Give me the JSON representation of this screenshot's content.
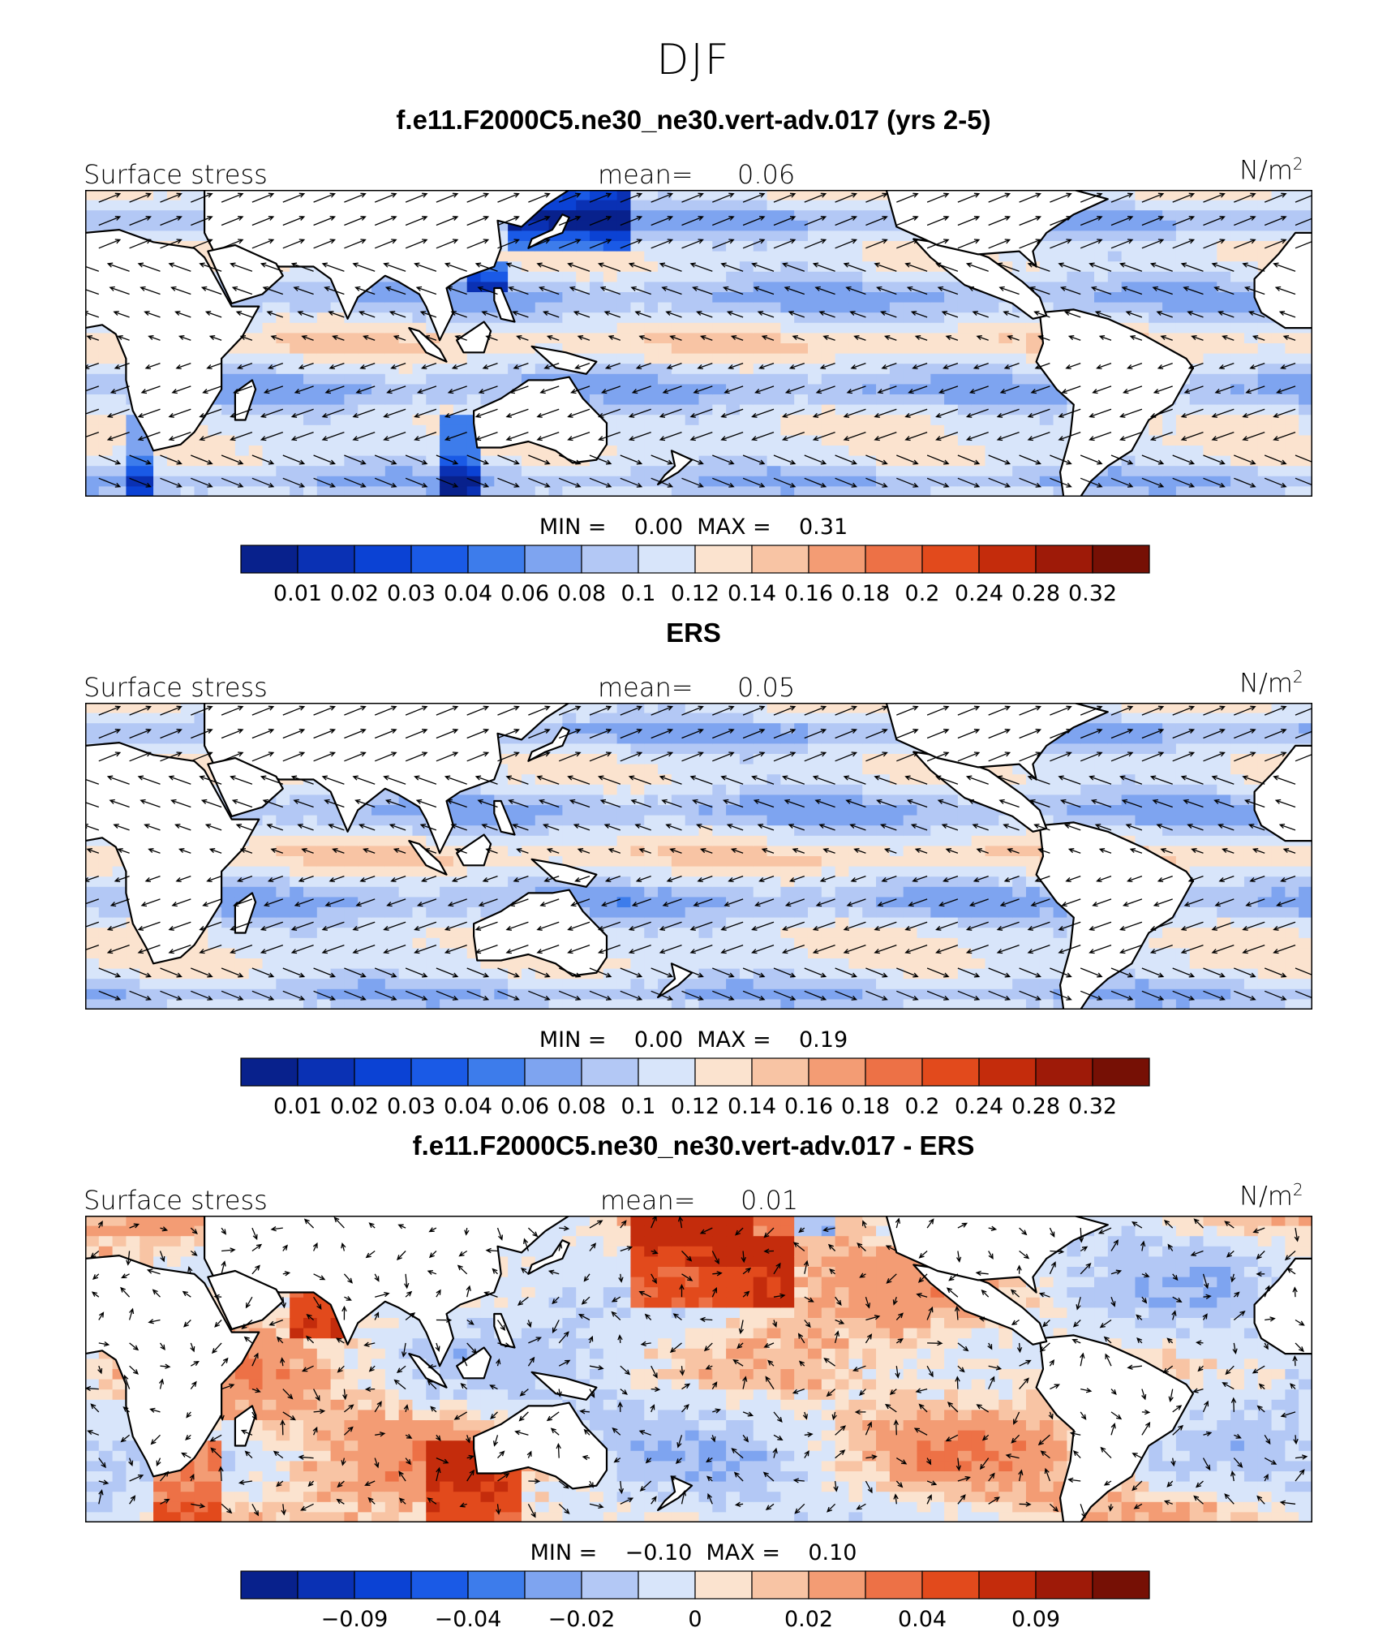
{
  "season": "DJF",
  "colors": {
    "levels": [
      "#08218c",
      "#0a31b4",
      "#0b42d4",
      "#1a5ae6",
      "#3d7ceb",
      "#7ea4f0",
      "#b3c8f5",
      "#d8e5fa",
      "#fbe3cf",
      "#f8c4a4",
      "#f39c74",
      "#ed7146",
      "#e24a1c",
      "#c42c0c",
      "#9e1a08",
      "#761005"
    ],
    "land": "#ffffff",
    "coast": "#000000"
  },
  "panels": [
    {
      "title": "f.e11.F2000C5.ne30_ne30.vert-adv.017 (yrs 2-5)",
      "left_label": "Surface stress",
      "mean_label": "mean=",
      "mean_value": "0.06",
      "units": "N/m",
      "units_sup": "2",
      "min_label": "MIN =",
      "min_value": "0.00",
      "max_label": "MAX =",
      "max_value": "0.31",
      "colorbar_ticks": [
        "0.01",
        "0.02",
        "0.03",
        "0.04",
        "0.06",
        "0.08",
        "0.1",
        "0.12",
        "0.14",
        "0.16",
        "0.18",
        "0.2",
        "0.24",
        "0.28",
        "0.32"
      ]
    },
    {
      "title": "ERS",
      "left_label": "Surface stress",
      "mean_label": "mean=",
      "mean_value": "0.05",
      "units": "N/m",
      "units_sup": "2",
      "min_label": "MIN =",
      "min_value": "0.00",
      "max_label": "MAX =",
      "max_value": "0.19",
      "colorbar_ticks": [
        "0.01",
        "0.02",
        "0.03",
        "0.04",
        "0.06",
        "0.08",
        "0.1",
        "0.12",
        "0.14",
        "0.16",
        "0.18",
        "0.2",
        "0.24",
        "0.28",
        "0.32"
      ]
    },
    {
      "title": "f.e11.F2000C5.ne30_ne30.vert-adv.017 - ERS",
      "left_label": "Surface stress",
      "mean_label": "mean=",
      "mean_value": "0.01",
      "units": "N/m",
      "units_sup": "2",
      "min_label": "MIN =",
      "min_value": "−0.10",
      "max_label": "MAX =",
      "max_value": "0.10",
      "colorbar_ticks": [
        "−0.09",
        "−0.04",
        "−0.02",
        "0",
        "0.02",
        "0.04",
        "0.09"
      ]
    }
  ],
  "chart_data": [
    {
      "type": "heatmap",
      "title": "f.e11.F2000C5.ne30_ne30.vert-adv.017 (yrs 2-5)",
      "variable": "Surface stress",
      "units": "N/m2",
      "mean": 0.06,
      "min": 0.0,
      "max": 0.31,
      "levels": [
        0.01,
        0.02,
        0.03,
        0.04,
        0.06,
        0.08,
        0.1,
        0.12,
        0.14,
        0.16,
        0.18,
        0.2,
        0.24,
        0.28,
        0.32
      ],
      "field": "model"
    },
    {
      "type": "heatmap",
      "title": "ERS",
      "variable": "Surface stress",
      "units": "N/m2",
      "mean": 0.05,
      "min": 0.0,
      "max": 0.19,
      "levels": [
        0.01,
        0.02,
        0.03,
        0.04,
        0.06,
        0.08,
        0.1,
        0.12,
        0.14,
        0.16,
        0.18,
        0.2,
        0.24,
        0.28,
        0.32
      ],
      "field": "obs"
    },
    {
      "type": "heatmap",
      "title": "f.e11.F2000C5.ne30_ne30.vert-adv.017 - ERS",
      "variable": "Surface stress",
      "units": "N/m2",
      "mean": 0.01,
      "min": -0.1,
      "max": 0.1,
      "levels": [
        -0.09,
        -0.04,
        -0.02,
        0,
        0.02,
        0.04,
        0.09
      ],
      "field": "diff"
    }
  ]
}
